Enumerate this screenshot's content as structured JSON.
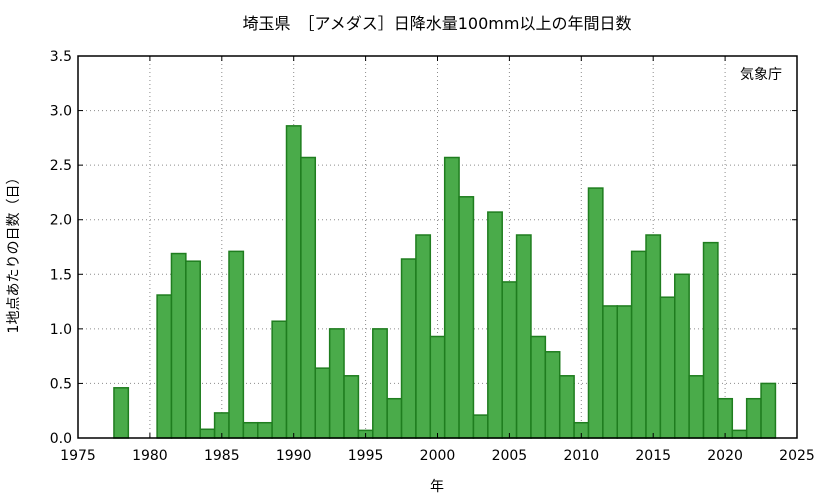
{
  "chart_data": {
    "type": "bar",
    "title": "埼玉県　［アメダス］日降水量100mm以上の年間日数",
    "xlabel": "年",
    "ylabel": "1地点あたりの日数（日）",
    "source_label": "気象庁",
    "xlim": [
      1975,
      2025
    ],
    "ylim": [
      0,
      3.5
    ],
    "x_ticks": [
      "1975",
      "1980",
      "1985",
      "1990",
      "1995",
      "2000",
      "2005",
      "2010",
      "2015",
      "2020",
      "2025"
    ],
    "y_ticks": [
      "0.0",
      "0.5",
      "1.0",
      "1.5",
      "2.0",
      "2.5",
      "3.0",
      "3.5"
    ],
    "grid": true,
    "colors": {
      "bar_fill": "#4aab4a",
      "bar_edge": "#1f7d1f"
    },
    "years": [
      1976,
      1977,
      1978,
      1979,
      1980,
      1981,
      1982,
      1983,
      1984,
      1985,
      1986,
      1987,
      1988,
      1989,
      1990,
      1991,
      1992,
      1993,
      1994,
      1995,
      1996,
      1997,
      1998,
      1999,
      2000,
      2001,
      2002,
      2003,
      2004,
      2005,
      2006,
      2007,
      2008,
      2009,
      2010,
      2011,
      2012,
      2013,
      2014,
      2015,
      2016,
      2017,
      2018,
      2019,
      2020,
      2021,
      2022,
      2023
    ],
    "values": [
      0,
      0,
      0.46,
      0,
      0,
      1.31,
      1.69,
      1.62,
      0.08,
      0.23,
      1.71,
      0.14,
      0.14,
      1.07,
      2.86,
      2.57,
      0.64,
      1.0,
      0.57,
      0.07,
      1.0,
      0.36,
      1.64,
      1.86,
      0.93,
      2.57,
      2.21,
      0.21,
      2.07,
      1.43,
      1.86,
      0.93,
      0.79,
      0.57,
      0.14,
      2.29,
      1.21,
      1.21,
      1.71,
      1.86,
      1.29,
      1.5,
      0.57,
      1.79,
      0.36,
      0.07,
      0.36,
      0.5
    ]
  }
}
